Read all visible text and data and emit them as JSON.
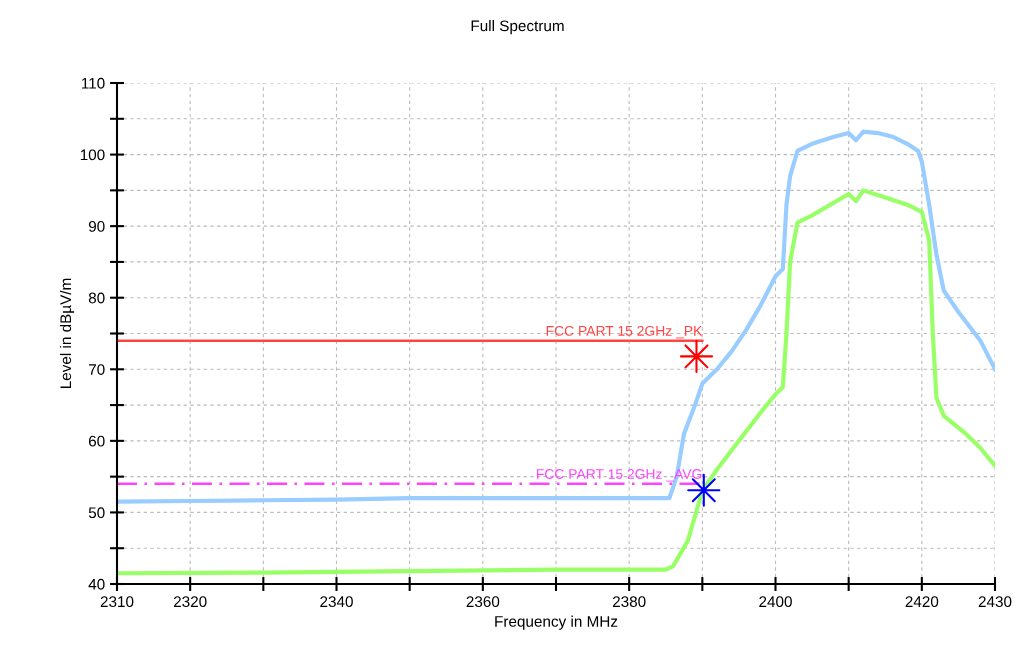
{
  "chart_data": {
    "type": "line",
    "title": "Full Spectrum",
    "xlabel": "Frequency in MHz",
    "ylabel": "Level in dBµV/m",
    "xlim": [
      2310,
      2430
    ],
    "ylim": [
      40,
      110
    ],
    "xticks": [
      2310,
      2320,
      {
        "value": 2330,
        "label": null
      },
      2340,
      {
        "value": 2350,
        "label": null
      },
      2360,
      {
        "value": 2370,
        "label": null
      },
      2380,
      {
        "value": 2390,
        "label": null
      },
      2400,
      {
        "value": 2410,
        "label": null
      },
      2420,
      2430
    ],
    "yticks": [
      40,
      {
        "value": 45,
        "label": null
      },
      50,
      {
        "value": 55,
        "label": null
      },
      60,
      {
        "value": 65,
        "label": null
      },
      70,
      {
        "value": 75,
        "label": null
      },
      80,
      {
        "value": 85,
        "label": null
      },
      90,
      {
        "value": 95,
        "label": null
      },
      100,
      {
        "value": 105,
        "label": null
      },
      110
    ],
    "grid": true,
    "marker": "none",
    "series": [
      {
        "color": "#99ccff",
        "x": [
          2310,
          2320,
          2330,
          2340,
          2350,
          2360,
          2370,
          2380,
          2385.5,
          2386.5,
          2387.5,
          2389,
          2390,
          2392,
          2394,
          2396,
          2398,
          2400,
          2401,
          2401.5,
          2402,
          2403,
          2405,
          2408,
          2410,
          2411,
          2412,
          2414,
          2416,
          2418,
          2419.5,
          2420,
          2421,
          2422,
          2423,
          2425,
          2428,
          2430
        ],
        "values": [
          51.5,
          51.6,
          51.7,
          51.8,
          52,
          52,
          52,
          52,
          52,
          55,
          61,
          65,
          68,
          70,
          72.5,
          75.5,
          79,
          83,
          84,
          93,
          97,
          100.5,
          101.5,
          102.5,
          103,
          102,
          103.2,
          103,
          102.5,
          101.5,
          100.5,
          99,
          93,
          86,
          81,
          78,
          74,
          70
        ]
      },
      {
        "color": "#99ff66",
        "x": [
          2310,
          2330,
          2350,
          2370,
          2385,
          2386,
          2388,
          2390,
          2392,
          2395,
          2398,
          2400,
          2401,
          2401.5,
          2402,
          2403,
          2405,
          2410,
          2411,
          2412,
          2415,
          2418,
          2420,
          2421,
          2421.5,
          2422,
          2423,
          2426,
          2428,
          2430
        ],
        "values": [
          41.5,
          41.6,
          41.8,
          42,
          42,
          42.5,
          46,
          53,
          56,
          60,
          64,
          66.5,
          67.5,
          75,
          85,
          90.5,
          91.5,
          94.5,
          93.5,
          95,
          94,
          93,
          92,
          88,
          75,
          66,
          63.5,
          61,
          59,
          56.5
        ]
      },
      {
        "name": "FCC PART 15 2GHz _PK",
        "color": "#ff4444",
        "x": [
          2310,
          2390
        ],
        "values": [
          74,
          74
        ],
        "line_style": "solid"
      },
      {
        "name": "FCC PART 15 2GHz _AVG",
        "color": "#ff44ff",
        "x": [
          2310,
          2390
        ],
        "values": [
          54,
          54
        ],
        "line_style": "dashed"
      },
      {
        "type": "scatter",
        "marker": "star",
        "color": "#ff0000",
        "x": [
          2389.2
        ],
        "values": [
          71.8
        ]
      },
      {
        "type": "scatter",
        "marker": "star",
        "color": "#0000ff",
        "x": [
          2390.2
        ],
        "values": [
          53.1
        ]
      }
    ]
  }
}
